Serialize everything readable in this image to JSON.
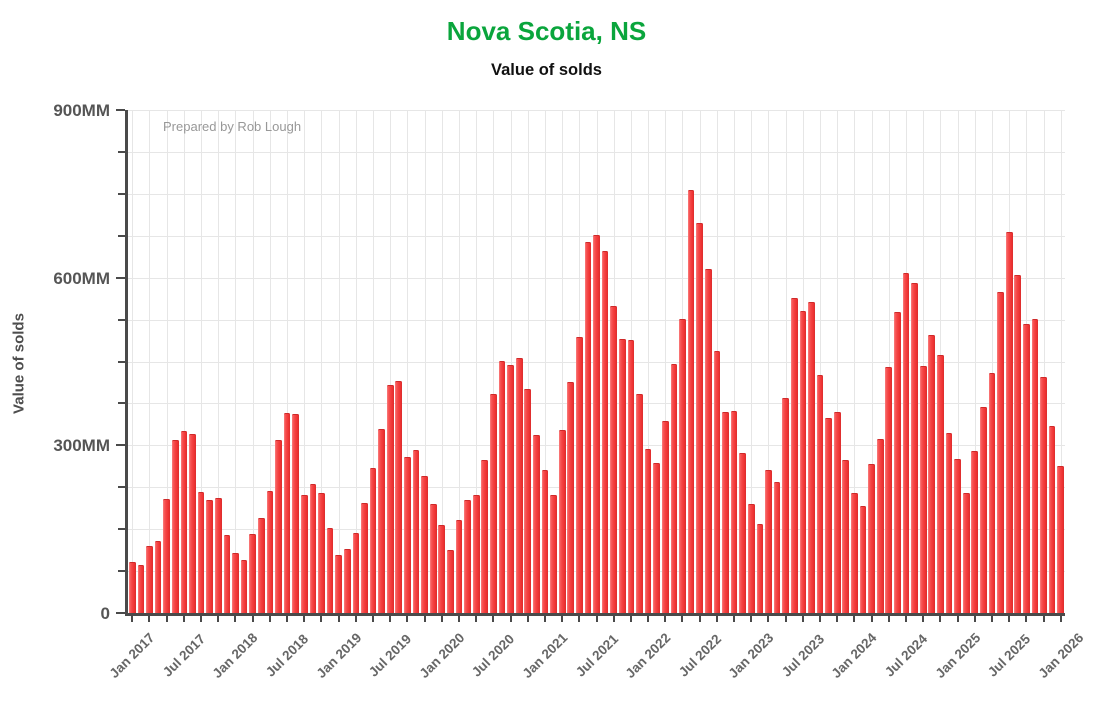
{
  "header": {
    "title": "Nova Scotia, NS",
    "subtitle": "Value of solds"
  },
  "annotation": "Prepared by Rob Lough",
  "colors": {
    "title_green": "#0aa53c",
    "bar_red": "#f34040",
    "bar_edge_dark": "#cf2929",
    "axis_gray": "#4a4a4a",
    "grid_gray": "#e6e6e6",
    "label_gray": "#666666",
    "annotation_gray": "#989898"
  },
  "chart_data": {
    "type": "bar",
    "title": "Nova Scotia, NS",
    "subtitle": "Value of solds",
    "xlabel": "",
    "ylabel": "Value of solds",
    "ylim": [
      0,
      900
    ],
    "y_unit": "MM",
    "y_major_ticks": [
      {
        "value": 0,
        "label": "0"
      },
      {
        "value": 300,
        "label": "300MM"
      },
      {
        "value": 600,
        "label": "600MM"
      },
      {
        "value": 900,
        "label": "900MM"
      }
    ],
    "y_minor_step": 75,
    "x_tick_step_months": 2,
    "x_label_step_months": 6,
    "grid": true,
    "legend": "none",
    "categories": [
      "Jan 2017",
      "Feb 2017",
      "Mar 2017",
      "Apr 2017",
      "May 2017",
      "Jun 2017",
      "Jul 2017",
      "Aug 2017",
      "Sep 2017",
      "Oct 2017",
      "Nov 2017",
      "Dec 2017",
      "Jan 2018",
      "Feb 2018",
      "Mar 2018",
      "Apr 2018",
      "May 2018",
      "Jun 2018",
      "Jul 2018",
      "Aug 2018",
      "Sep 2018",
      "Oct 2018",
      "Nov 2018",
      "Dec 2018",
      "Jan 2019",
      "Feb 2019",
      "Mar 2019",
      "Apr 2019",
      "May 2019",
      "Jun 2019",
      "Jul 2019",
      "Aug 2019",
      "Sep 2019",
      "Oct 2019",
      "Nov 2019",
      "Dec 2019",
      "Jan 2020",
      "Feb 2020",
      "Mar 2020",
      "Apr 2020",
      "May 2020",
      "Jun 2020",
      "Jul 2020",
      "Aug 2020",
      "Sep 2020",
      "Oct 2020",
      "Nov 2020",
      "Dec 2020",
      "Jan 2021",
      "Feb 2021",
      "Mar 2021",
      "Apr 2021",
      "May 2021",
      "Jun 2021",
      "Jul 2021",
      "Aug 2021",
      "Sep 2021",
      "Oct 2021",
      "Nov 2021",
      "Dec 2021",
      "Jan 2022",
      "Feb 2022",
      "Mar 2022",
      "Apr 2022",
      "May 2022",
      "Jun 2022",
      "Jul 2022",
      "Aug 2022",
      "Sep 2022",
      "Oct 2022",
      "Nov 2022",
      "Dec 2022",
      "Jan 2023",
      "Feb 2023",
      "Mar 2023",
      "Apr 2023",
      "May 2023",
      "Jun 2023",
      "Jul 2023",
      "Aug 2023",
      "Sep 2023",
      "Oct 2023",
      "Nov 2023",
      "Dec 2023",
      "Jan 2024",
      "Feb 2024",
      "Mar 2024",
      "Apr 2024",
      "May 2024",
      "Jun 2024",
      "Jul 2024",
      "Aug 2024",
      "Sep 2024",
      "Oct 2024",
      "Nov 2024",
      "Dec 2024",
      "Jan 2025",
      "Feb 2025",
      "Mar 2025",
      "Apr 2025",
      "May 2025",
      "Jun 2025",
      "Jul 2025",
      "Aug 2025",
      "Sep 2025",
      "Oct 2025",
      "Nov 2025",
      "Dec 2025",
      "Jan 2026"
    ],
    "values": [
      92,
      85,
      120,
      128,
      204,
      310,
      326,
      320,
      216,
      202,
      206,
      139,
      107,
      94,
      141,
      170,
      218,
      310,
      357,
      356,
      211,
      230,
      215,
      152,
      104,
      115,
      143,
      197,
      260,
      330,
      408,
      415,
      279,
      291,
      246,
      195,
      157,
      112,
      166,
      203,
      212,
      273,
      391,
      450,
      443,
      456,
      401,
      319,
      255,
      212,
      327,
      414,
      493,
      663,
      676,
      648,
      549,
      491,
      488,
      391,
      294,
      269,
      343,
      445,
      526,
      757,
      697,
      616,
      468,
      359,
      361,
      287,
      195,
      160,
      255,
      235,
      385,
      563,
      541,
      557,
      425,
      349,
      359,
      273,
      215,
      191,
      266,
      311,
      441,
      538,
      609,
      590,
      442,
      498,
      462,
      322,
      276,
      215,
      290,
      369,
      430,
      574,
      682,
      604,
      517,
      526,
      423,
      334,
      263
    ],
    "x_major_tick_labels": [
      "Jan 2017",
      "Jul 2017",
      "Jan 2018",
      "Jul 2018",
      "Jan 2019",
      "Jul 2019",
      "Jan 2020",
      "Jul 2020",
      "Jan 2021",
      "Jul 2021",
      "Jan 2022",
      "Jul 2022",
      "Jan 2023",
      "Jul 2023",
      "Jan 2024",
      "Jul 2024",
      "Jan 2025",
      "Jul 2025",
      "Jan 2026"
    ]
  }
}
